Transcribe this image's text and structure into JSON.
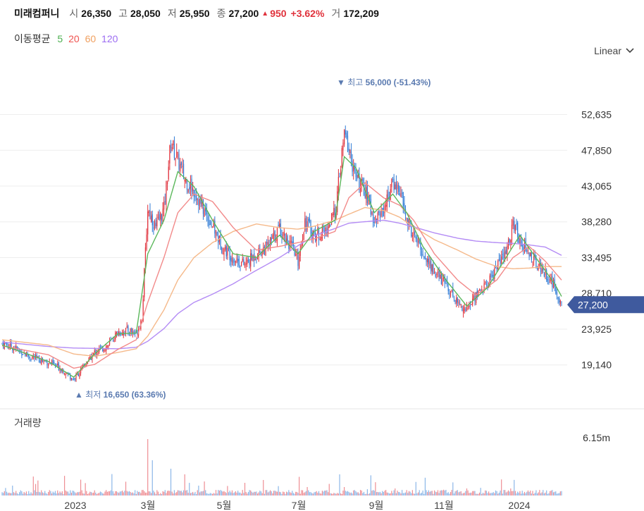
{
  "header": {
    "name": "미래컴퍼니",
    "open_label": "시",
    "open": "26,350",
    "high_label": "고",
    "high": "28,050",
    "low_label": "저",
    "low": "25,950",
    "close_label": "종",
    "close": "27,200",
    "change": "950",
    "change_pct": "+3.62%",
    "volume_label": "거",
    "volume": "172,209"
  },
  "ma_legend": {
    "title": "이동평균",
    "items": [
      {
        "label": "5",
        "color": "#4caf50"
      },
      {
        "label": "20",
        "color": "#ef5350"
      },
      {
        "label": "60",
        "color": "#f0a060"
      },
      {
        "label": "120",
        "color": "#9c6cf2"
      }
    ]
  },
  "scale_mode": "Linear",
  "colors": {
    "up": "#e0323c",
    "down": "#2e7bd6",
    "last_price_bg": "#3f5a9e"
  },
  "chart_data": {
    "type": "candlestick",
    "price_axis": {
      "ticks": [
        52635,
        47850,
        43065,
        38280,
        33495,
        28710,
        23925,
        19140
      ],
      "range": [
        14400,
        59000
      ]
    },
    "x_ticks": [
      "2023",
      "3월",
      "5월",
      "7월",
      "9월",
      "11월",
      "2024"
    ],
    "last_price": "27,200",
    "high_marker": {
      "label": "최고",
      "value": "56,000 (-51.43%)",
      "price": 56000
    },
    "low_marker": {
      "label": "최저",
      "value": "16,650 (63.36%)",
      "price": 16650
    },
    "volume_label": "거래량",
    "volume_tick": "6.15m",
    "close_path": [
      [
        0,
        22000
      ],
      [
        10,
        21500
      ],
      [
        25,
        20200
      ],
      [
        40,
        19500
      ],
      [
        52,
        18600
      ],
      [
        62,
        17200
      ],
      [
        70,
        18800
      ],
      [
        80,
        20800
      ],
      [
        92,
        21800
      ],
      [
        100,
        23500
      ],
      [
        110,
        23800
      ],
      [
        116,
        23300
      ],
      [
        121,
        25500
      ],
      [
        126,
        40000
      ],
      [
        133,
        37500
      ],
      [
        140,
        40000
      ],
      [
        146,
        49000
      ],
      [
        152,
        46500
      ],
      [
        158,
        44000
      ],
      [
        166,
        42500
      ],
      [
        174,
        40000
      ],
      [
        182,
        37800
      ],
      [
        190,
        35000
      ],
      [
        200,
        33500
      ],
      [
        210,
        32500
      ],
      [
        220,
        34000
      ],
      [
        230,
        35000
      ],
      [
        240,
        37500
      ],
      [
        250,
        35000
      ],
      [
        256,
        33000
      ],
      [
        262,
        38500
      ],
      [
        270,
        36500
      ],
      [
        280,
        37000
      ],
      [
        288,
        39500
      ],
      [
        292,
        44500
      ],
      [
        296,
        50000
      ],
      [
        300,
        48000
      ],
      [
        306,
        44000
      ],
      [
        314,
        42500
      ],
      [
        322,
        38500
      ],
      [
        330,
        40000
      ],
      [
        338,
        43500
      ],
      [
        344,
        42500
      ],
      [
        350,
        38500
      ],
      [
        356,
        36500
      ],
      [
        364,
        34000
      ],
      [
        374,
        31500
      ],
      [
        384,
        30000
      ],
      [
        394,
        27500
      ],
      [
        402,
        26500
      ],
      [
        410,
        28500
      ],
      [
        420,
        30000
      ],
      [
        428,
        32500
      ],
      [
        436,
        34000
      ],
      [
        442,
        38000
      ],
      [
        448,
        36000
      ],
      [
        456,
        34000
      ],
      [
        464,
        32500
      ],
      [
        472,
        31000
      ],
      [
        478,
        29500
      ],
      [
        484,
        27200
      ]
    ],
    "ma5": [
      [
        0,
        21800
      ],
      [
        40,
        19600
      ],
      [
        62,
        17500
      ],
      [
        80,
        20600
      ],
      [
        100,
        23300
      ],
      [
        116,
        23400
      ],
      [
        126,
        34000
      ],
      [
        140,
        38500
      ],
      [
        152,
        45000
      ],
      [
        166,
        43000
      ],
      [
        182,
        38500
      ],
      [
        200,
        34000
      ],
      [
        220,
        33500
      ],
      [
        240,
        36500
      ],
      [
        256,
        34000
      ],
      [
        270,
        37000
      ],
      [
        288,
        38500
      ],
      [
        296,
        47000
      ],
      [
        306,
        45500
      ],
      [
        322,
        39500
      ],
      [
        338,
        42000
      ],
      [
        350,
        39500
      ],
      [
        364,
        35000
      ],
      [
        384,
        30500
      ],
      [
        402,
        27000
      ],
      [
        420,
        29500
      ],
      [
        436,
        33500
      ],
      [
        448,
        36500
      ],
      [
        464,
        33000
      ],
      [
        478,
        30000
      ],
      [
        484,
        28300
      ]
    ],
    "ma20": [
      [
        0,
        21700
      ],
      [
        40,
        20500
      ],
      [
        62,
        18700
      ],
      [
        80,
        19200
      ],
      [
        100,
        21200
      ],
      [
        116,
        22500
      ],
      [
        126,
        27500
      ],
      [
        140,
        33500
      ],
      [
        152,
        39500
      ],
      [
        166,
        42000
      ],
      [
        182,
        41000
      ],
      [
        200,
        37500
      ],
      [
        220,
        34500
      ],
      [
        240,
        35000
      ],
      [
        256,
        35500
      ],
      [
        270,
        36000
      ],
      [
        288,
        37000
      ],
      [
        300,
        41500
      ],
      [
        314,
        43500
      ],
      [
        330,
        41500
      ],
      [
        344,
        40500
      ],
      [
        356,
        38500
      ],
      [
        374,
        34000
      ],
      [
        394,
        30500
      ],
      [
        410,
        28500
      ],
      [
        428,
        30500
      ],
      [
        442,
        33500
      ],
      [
        456,
        35000
      ],
      [
        470,
        33000
      ],
      [
        484,
        30500
      ]
    ],
    "ma60": [
      [
        0,
        22500
      ],
      [
        40,
        21800
      ],
      [
        62,
        20600
      ],
      [
        80,
        20300
      ],
      [
        100,
        20800
      ],
      [
        116,
        21300
      ],
      [
        126,
        23000
      ],
      [
        140,
        26500
      ],
      [
        152,
        30500
      ],
      [
        166,
        33500
      ],
      [
        182,
        35500
      ],
      [
        200,
        37000
      ],
      [
        220,
        38000
      ],
      [
        240,
        37500
      ],
      [
        256,
        37300
      ],
      [
        270,
        37700
      ],
      [
        288,
        38500
      ],
      [
        300,
        39300
      ],
      [
        314,
        40200
      ],
      [
        330,
        39800
      ],
      [
        344,
        38900
      ],
      [
        356,
        37600
      ],
      [
        374,
        35900
      ],
      [
        394,
        34500
      ],
      [
        410,
        33300
      ],
      [
        428,
        32300
      ],
      [
        442,
        32000
      ],
      [
        456,
        32100
      ],
      [
        470,
        32300
      ],
      [
        484,
        32300
      ]
    ],
    "ma120": [
      [
        0,
        22200
      ],
      [
        40,
        21600
      ],
      [
        62,
        21400
      ],
      [
        80,
        21350
      ],
      [
        100,
        21300
      ],
      [
        116,
        21500
      ],
      [
        126,
        22300
      ],
      [
        140,
        24000
      ],
      [
        152,
        26000
      ],
      [
        166,
        27500
      ],
      [
        182,
        28600
      ],
      [
        200,
        30000
      ],
      [
        220,
        31800
      ],
      [
        240,
        33500
      ],
      [
        256,
        35100
      ],
      [
        270,
        36400
      ],
      [
        288,
        37400
      ],
      [
        300,
        38100
      ],
      [
        314,
        38300
      ],
      [
        330,
        38500
      ],
      [
        344,
        38100
      ],
      [
        356,
        37600
      ],
      [
        374,
        36800
      ],
      [
        394,
        36100
      ],
      [
        410,
        35700
      ],
      [
        428,
        35500
      ],
      [
        442,
        35400
      ],
      [
        456,
        35200
      ],
      [
        470,
        34900
      ],
      [
        484,
        33800
      ]
    ]
  }
}
